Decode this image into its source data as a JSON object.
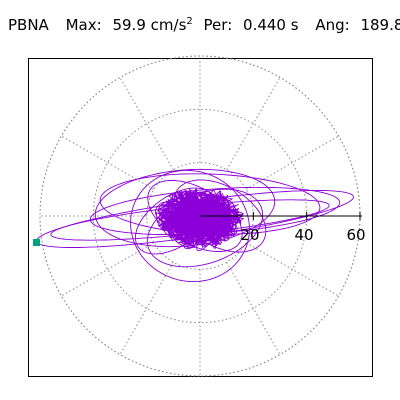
{
  "header": {
    "station": "PBNA",
    "max_label": "Max:",
    "max_value": "59.9",
    "max_unit": "cm/s",
    "max_unit_exp": "2",
    "per_label": "Per:",
    "per_value": "0.440 s",
    "ang_label": "Ang:",
    "ang_value": "189.8"
  },
  "axis": {
    "ticks": [
      "20",
      "40",
      "60"
    ]
  },
  "colors": {
    "trace": "#8b00d8",
    "grid": "#8a8a8a",
    "marker": "#00a080"
  },
  "chart_data": {
    "type": "scatter",
    "title": "",
    "radial_ticks": [
      20,
      40,
      60
    ],
    "rmax": 60,
    "max_point": {
      "r": 59.9,
      "angle_deg": 189.8
    },
    "grid": true
  }
}
